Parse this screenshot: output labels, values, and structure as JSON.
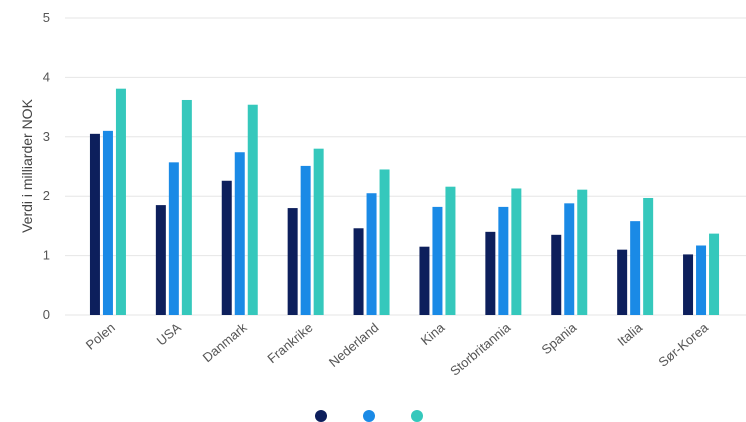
{
  "chart_data": {
    "type": "bar",
    "ylabel": "Verdi i milliarder NOK",
    "xlabel": "",
    "ylim": [
      0,
      5
    ],
    "yticks": [
      "0",
      "1",
      "2",
      "3",
      "4",
      "5"
    ],
    "grid": true,
    "legend_position": "bottom",
    "categories": [
      "Polen",
      "USA",
      "Danmark",
      "Frankrike",
      "Nederland",
      "Kina",
      "Storbritannia",
      "Spania",
      "Italia",
      "Sør-Korea"
    ],
    "series": [
      {
        "name": "",
        "color": "#0d1f5c",
        "values": [
          3.05,
          1.85,
          2.26,
          1.8,
          1.46,
          1.15,
          1.4,
          1.35,
          1.1,
          1.02
        ]
      },
      {
        "name": "",
        "color": "#1a8ae6",
        "values": [
          3.1,
          2.57,
          2.74,
          2.51,
          2.05,
          1.82,
          1.82,
          1.88,
          1.58,
          1.17
        ]
      },
      {
        "name": "",
        "color": "#35c8bc",
        "values": [
          3.81,
          3.62,
          3.54,
          2.8,
          2.45,
          2.16,
          2.13,
          2.11,
          1.97,
          1.37
        ]
      }
    ]
  }
}
